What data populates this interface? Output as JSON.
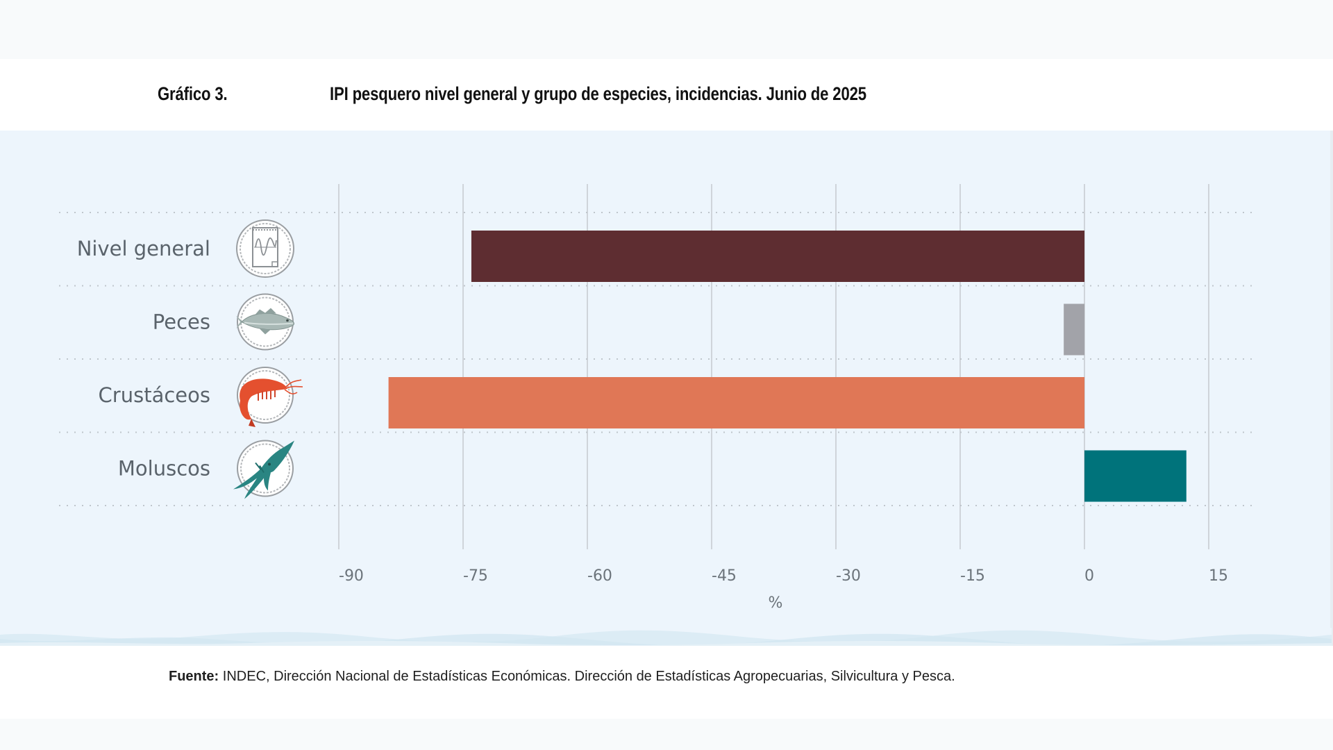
{
  "header": {
    "figure_number": "Gráfico 3.",
    "figure_title": "IPI pesquero nivel general y grupo de especies, incidencias. Junio de 2025"
  },
  "footer": {
    "source_label": "Fuente:",
    "source_text": "INDEC, Dirección Nacional de Estadísticas Económicas. Dirección de Estadísticas Agropecuarias, Silvicultura y Pesca."
  },
  "chart_data": {
    "type": "bar",
    "orientation": "horizontal",
    "title": "IPI pesquero nivel general y grupo de especies, incidencias. Junio de 2025",
    "categories": [
      "Nivel general",
      "Peces",
      "Crustáceos",
      "Moluscos"
    ],
    "category_icons": [
      "chart-document-icon",
      "fish-icon",
      "shrimp-icon",
      "squid-icon"
    ],
    "values": [
      -74.0,
      -2.5,
      -84.0,
      12.3
    ],
    "colors": [
      "#5e2d31",
      "#a2a3a9",
      "#e07756",
      "#00737b"
    ],
    "xlabel": "%",
    "ylabel": "",
    "xlim": [
      -90,
      15
    ],
    "xticks": [
      -90,
      -75,
      -60,
      -45,
      -30,
      -15,
      0,
      15
    ],
    "xtick_labels": [
      "-90",
      "-75",
      "-60",
      "-45",
      "-30",
      "-15",
      "0",
      "15"
    ],
    "grid": true,
    "legend": "none"
  }
}
